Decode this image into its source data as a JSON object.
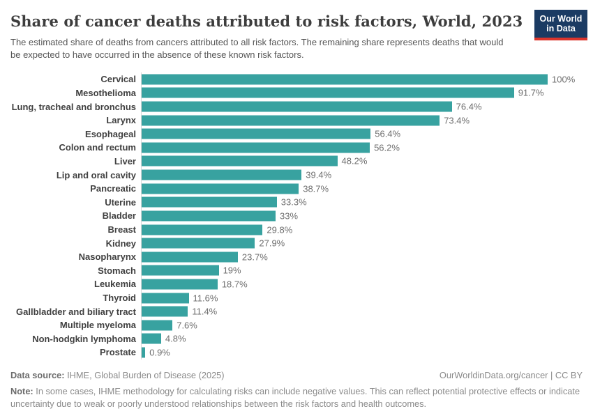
{
  "header": {
    "title": "Share of cancer deaths attributed to risk factors, World, 2023",
    "subtitle": "The estimated share of deaths from cancers attributed to all risk factors. The remaining share represents deaths that would be expected to have occurred in the absence of these known risk factors."
  },
  "logo": {
    "line1": "Our World",
    "line2": "in Data",
    "bg_color": "#1b3b63",
    "accent_color": "#dc352c"
  },
  "chart_data": {
    "type": "bar",
    "orientation": "horizontal",
    "title": "Share of cancer deaths attributed to risk factors, World, 2023",
    "xlabel": "",
    "ylabel": "",
    "xlim": [
      0,
      100
    ],
    "unit": "%",
    "grid": false,
    "legend": false,
    "bar_color": "#38a2a0",
    "axis_line_color": "#d9d9d9",
    "categories": [
      "Cervical",
      "Mesothelioma",
      "Lung, tracheal and bronchus",
      "Larynx",
      "Esophageal",
      "Colon and rectum",
      "Liver",
      "Lip and oral cavity",
      "Pancreatic",
      "Uterine",
      "Bladder",
      "Breast",
      "Kidney",
      "Nasopharynx",
      "Stomach",
      "Leukemia",
      "Thyroid",
      "Gallbladder and biliary tract",
      "Multiple myeloma",
      "Non-hodgkin lymphoma",
      "Prostate"
    ],
    "values": [
      100,
      91.7,
      76.4,
      73.4,
      56.4,
      56.2,
      48.2,
      39.4,
      38.7,
      33.3,
      33,
      29.8,
      27.9,
      23.7,
      19,
      18.7,
      11.6,
      11.4,
      7.6,
      4.8,
      0.9
    ],
    "value_labels": [
      "100%",
      "91.7%",
      "76.4%",
      "73.4%",
      "56.4%",
      "56.2%",
      "48.2%",
      "39.4%",
      "38.7%",
      "33.3%",
      "33%",
      "29.8%",
      "27.9%",
      "23.7%",
      "19%",
      "18.7%",
      "11.6%",
      "11.4%",
      "7.6%",
      "4.8%",
      "0.9%"
    ]
  },
  "footer": {
    "data_source_label": "Data source:",
    "data_source": " IHME, Global Burden of Disease (2025)",
    "attribution": "OurWorldinData.org/cancer | CC BY",
    "note_label": "Note:",
    "note": " In some cases, IHME methodology for calculating risks can include negative values. This can reflect potential protective effects or indicate uncertainty due to weak or poorly understood relationships between the risk factors and health outcomes."
  }
}
